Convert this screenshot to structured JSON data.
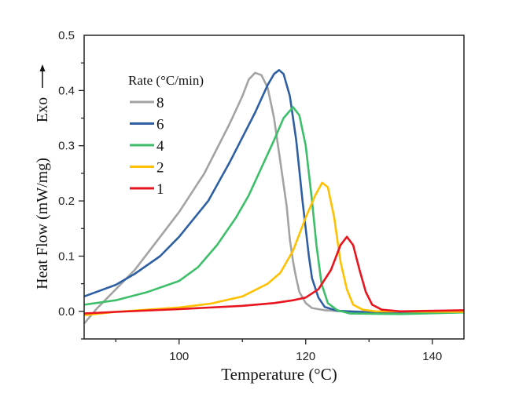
{
  "chart_data": {
    "type": "line",
    "xlabel": "Temperature (°C)",
    "ylabel": "Heat Flow (mW/mg)",
    "exo_label": "Exo",
    "xlim": [
      85,
      145
    ],
    "ylim": [
      -0.05,
      0.5
    ],
    "xticks": [
      100,
      120,
      140
    ],
    "yticks": [
      0.0,
      0.1,
      0.2,
      0.3,
      0.4,
      0.5
    ],
    "ytick_labels": [
      "0.0",
      "0.1",
      "0.2",
      "0.3",
      "0.4",
      "0.5"
    ],
    "grid": false,
    "legend": {
      "title": "Rate (°C/min)",
      "placement": "top-left"
    },
    "series": [
      {
        "name": "8",
        "color": "#a3a3a3",
        "x": [
          85,
          87,
          90,
          93,
          96,
          100,
          104,
          108,
          110,
          111,
          112,
          113,
          114,
          115,
          116,
          117,
          117.5,
          118,
          118.5,
          119,
          120,
          121,
          123,
          126,
          135,
          145
        ],
        "y": [
          -0.022,
          0.005,
          0.04,
          0.075,
          0.12,
          0.18,
          0.25,
          0.34,
          0.39,
          0.42,
          0.432,
          0.428,
          0.405,
          0.35,
          0.27,
          0.19,
          0.13,
          0.09,
          0.06,
          0.035,
          0.015,
          0.006,
          0.002,
          0,
          -0.002,
          -0.002
        ]
      },
      {
        "name": "6",
        "color": "#2e5fa3",
        "x": [
          85,
          90,
          93,
          97,
          100,
          104.6,
          108,
          112,
          114,
          115,
          115.8,
          116.5,
          117.5,
          118.5,
          119.5,
          120.5,
          121,
          122,
          123,
          125,
          130,
          145
        ],
        "y": [
          0.027,
          0.048,
          0.068,
          0.1,
          0.135,
          0.2,
          0.27,
          0.36,
          0.41,
          0.43,
          0.437,
          0.43,
          0.39,
          0.31,
          0.2,
          0.1,
          0.06,
          0.025,
          0.008,
          0.001,
          -0.002,
          -0.001
        ]
      },
      {
        "name": "4",
        "color": "#3dbf6a",
        "x": [
          85,
          90,
          95,
          100,
          103,
          106,
          109,
          111,
          113,
          115,
          116.5,
          118,
          119,
          120,
          121,
          121.7,
          122.5,
          123.5,
          125,
          127,
          135,
          145
        ],
        "y": [
          0.012,
          0.02,
          0.035,
          0.055,
          0.08,
          0.12,
          0.17,
          0.21,
          0.26,
          0.31,
          0.35,
          0.37,
          0.355,
          0.3,
          0.2,
          0.12,
          0.05,
          0.015,
          0.002,
          -0.004,
          -0.005,
          -0.002
        ]
      },
      {
        "name": "2",
        "color": "#ffc000",
        "x": [
          85,
          90,
          95,
          100,
          105,
          110,
          114,
          116,
          118,
          120,
          121.5,
          122.6,
          123.5,
          124.5,
          125.5,
          126.5,
          127.5,
          129,
          131,
          145
        ],
        "y": [
          -0.007,
          -0.001,
          0.003,
          0.007,
          0.014,
          0.027,
          0.05,
          0.07,
          0.11,
          0.17,
          0.21,
          0.233,
          0.225,
          0.17,
          0.09,
          0.04,
          0.012,
          0.003,
          0,
          -0.001
        ]
      },
      {
        "name": "1",
        "color": "#e8141e",
        "x": [
          85,
          90,
          100,
          110,
          115,
          118,
          120,
          122,
          124,
          125.5,
          126.5,
          127.5,
          128.5,
          129.5,
          130.5,
          132,
          135,
          145
        ],
        "y": [
          -0.004,
          -0.001,
          0.004,
          0.01,
          0.015,
          0.02,
          0.025,
          0.04,
          0.075,
          0.12,
          0.135,
          0.12,
          0.075,
          0.035,
          0.012,
          0.003,
          0,
          0.002
        ]
      }
    ]
  }
}
